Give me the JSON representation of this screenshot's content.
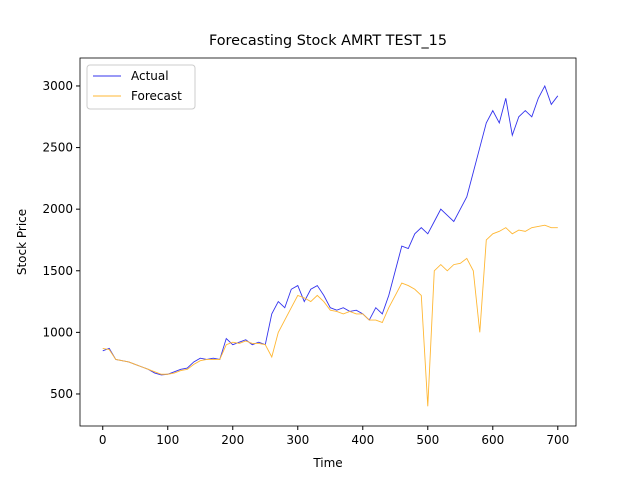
{
  "chart_data": {
    "type": "line",
    "title": "Forecasting Stock AMRT TEST_15",
    "x_label": "Time",
    "y_label": "Stock Price",
    "x": [
      0,
      10,
      20,
      30,
      40,
      50,
      60,
      70,
      80,
      90,
      100,
      110,
      120,
      130,
      140,
      150,
      160,
      170,
      180,
      190,
      200,
      210,
      220,
      230,
      240,
      250,
      260,
      270,
      280,
      290,
      300,
      310,
      320,
      330,
      340,
      350,
      360,
      370,
      380,
      390,
      400,
      410,
      420,
      430,
      440,
      450,
      460,
      470,
      480,
      490,
      500,
      510,
      520,
      530,
      540,
      550,
      560,
      570,
      580,
      590,
      600,
      610,
      620,
      630,
      640,
      650,
      660,
      670,
      680,
      690,
      700
    ],
    "series": [
      {
        "name": "Actual",
        "color": "#3333ee",
        "values": [
          850,
          870,
          780,
          770,
          760,
          740,
          720,
          700,
          670,
          655,
          660,
          680,
          700,
          710,
          760,
          790,
          780,
          790,
          780,
          950,
          900,
          920,
          940,
          900,
          920,
          900,
          1150,
          1250,
          1200,
          1350,
          1380,
          1250,
          1350,
          1380,
          1300,
          1200,
          1180,
          1200,
          1170,
          1180,
          1150,
          1100,
          1200,
          1150,
          1300,
          1500,
          1700,
          1680,
          1800,
          1850,
          1800,
          1900,
          2000,
          1950,
          1900,
          2000,
          2100,
          2300,
          2500,
          2700,
          2800,
          2700,
          2900,
          2600,
          2750,
          2800,
          2750,
          2900,
          3000,
          2850,
          2920
        ]
      },
      {
        "name": "Forecast",
        "color": "#ffb733",
        "values": [
          870,
          860,
          780,
          770,
          760,
          740,
          720,
          700,
          680,
          660,
          660,
          670,
          690,
          700,
          740,
          770,
          780,
          780,
          780,
          900,
          920,
          910,
          930,
          910,
          910,
          900,
          800,
          1000,
          1100,
          1200,
          1300,
          1280,
          1250,
          1300,
          1250,
          1180,
          1170,
          1150,
          1170,
          1150,
          1150,
          1100,
          1100,
          1080,
          1200,
          1300,
          1400,
          1380,
          1350,
          1300,
          400,
          1500,
          1550,
          1500,
          1550,
          1560,
          1600,
          1500,
          1000,
          1750,
          1800,
          1820,
          1850,
          1800,
          1830,
          1820,
          1850,
          1860,
          1870,
          1850,
          1850
        ]
      }
    ],
    "xlim": [
      -35,
      728
    ],
    "ylim": [
      240,
      3227
    ],
    "xticks": [
      0,
      100,
      200,
      300,
      400,
      500,
      600,
      700
    ],
    "yticks": [
      500,
      1000,
      1500,
      2000,
      2500,
      3000
    ],
    "legend": "upper left"
  }
}
